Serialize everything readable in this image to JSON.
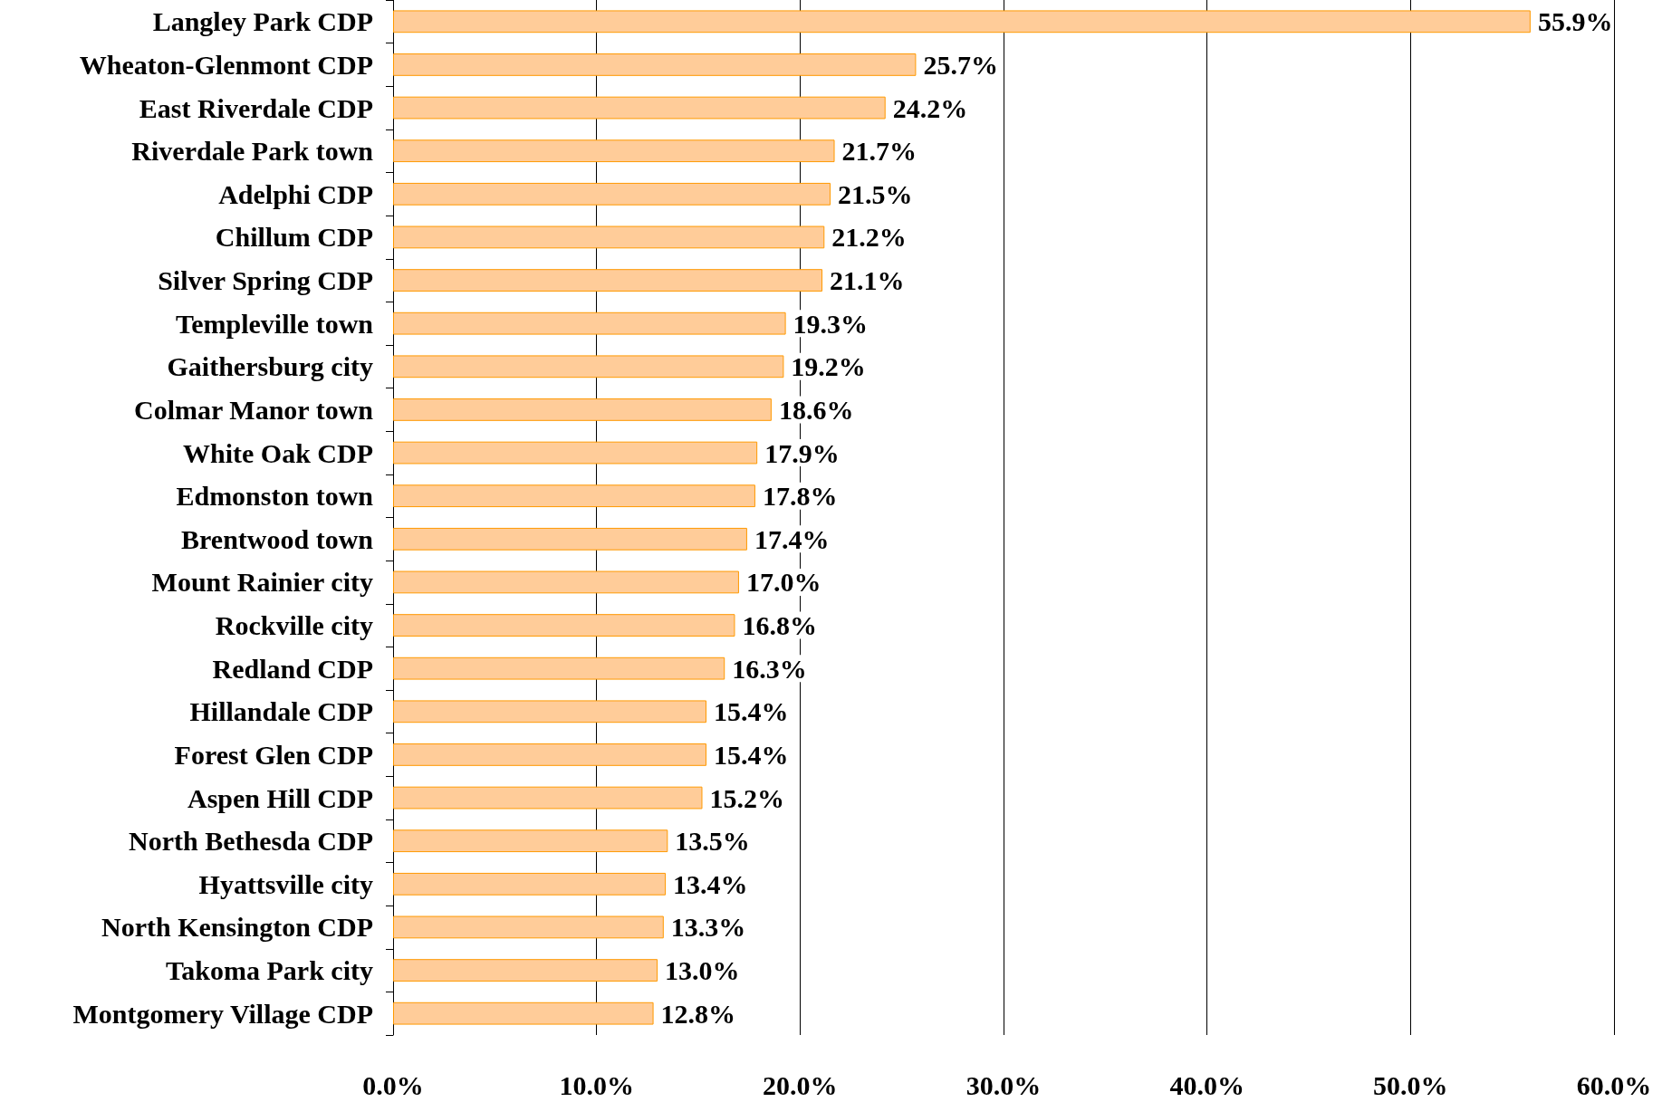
{
  "chart_data": {
    "type": "bar",
    "orientation": "horizontal",
    "categories": [
      "Langley Park CDP",
      "Wheaton-Glenmont CDP",
      "East Riverdale CDP",
      "Riverdale Park town",
      "Adelphi CDP",
      "Chillum CDP",
      "Silver Spring CDP",
      "Templeville town",
      "Gaithersburg city",
      "Colmar Manor town",
      "White Oak CDP",
      "Edmonston town",
      "Brentwood town",
      "Mount Rainier city",
      "Rockville city",
      "Redland CDP",
      "Hillandale CDP",
      "Forest Glen CDP",
      "Aspen Hill CDP",
      "North Bethesda CDP",
      "Hyattsville city",
      "North Kensington CDP",
      "Takoma Park city",
      "Montgomery Village CDP"
    ],
    "values": [
      55.9,
      25.7,
      24.2,
      21.7,
      21.5,
      21.2,
      21.1,
      19.3,
      19.2,
      18.6,
      17.9,
      17.8,
      17.4,
      17.0,
      16.8,
      16.3,
      15.4,
      15.4,
      15.2,
      13.5,
      13.4,
      13.3,
      13.0,
      12.8
    ],
    "value_labels": [
      "55.9%",
      "25.7%",
      "24.2%",
      "21.7%",
      "21.5%",
      "21.2%",
      "21.1%",
      "19.3%",
      "19.2%",
      "18.6%",
      "17.9%",
      "17.8%",
      "17.4%",
      "17.0%",
      "16.8%",
      "16.3%",
      "15.4%",
      "15.4%",
      "15.2%",
      "13.5%",
      "13.4%",
      "13.3%",
      "13.0%",
      "12.8%"
    ],
    "color": "#ffcc99",
    "xlim": [
      0,
      60
    ],
    "xticks": [
      {
        "value": 0,
        "label": "0.0%"
      },
      {
        "value": 10,
        "label": "10.0%"
      },
      {
        "value": 20,
        "label": "20.0%"
      },
      {
        "value": 30,
        "label": "30.0%"
      },
      {
        "value": 40,
        "label": "40.0%"
      },
      {
        "value": 50,
        "label": "50.0%"
      },
      {
        "value": 60,
        "label": "60.0%"
      }
    ],
    "grid": "x"
  }
}
